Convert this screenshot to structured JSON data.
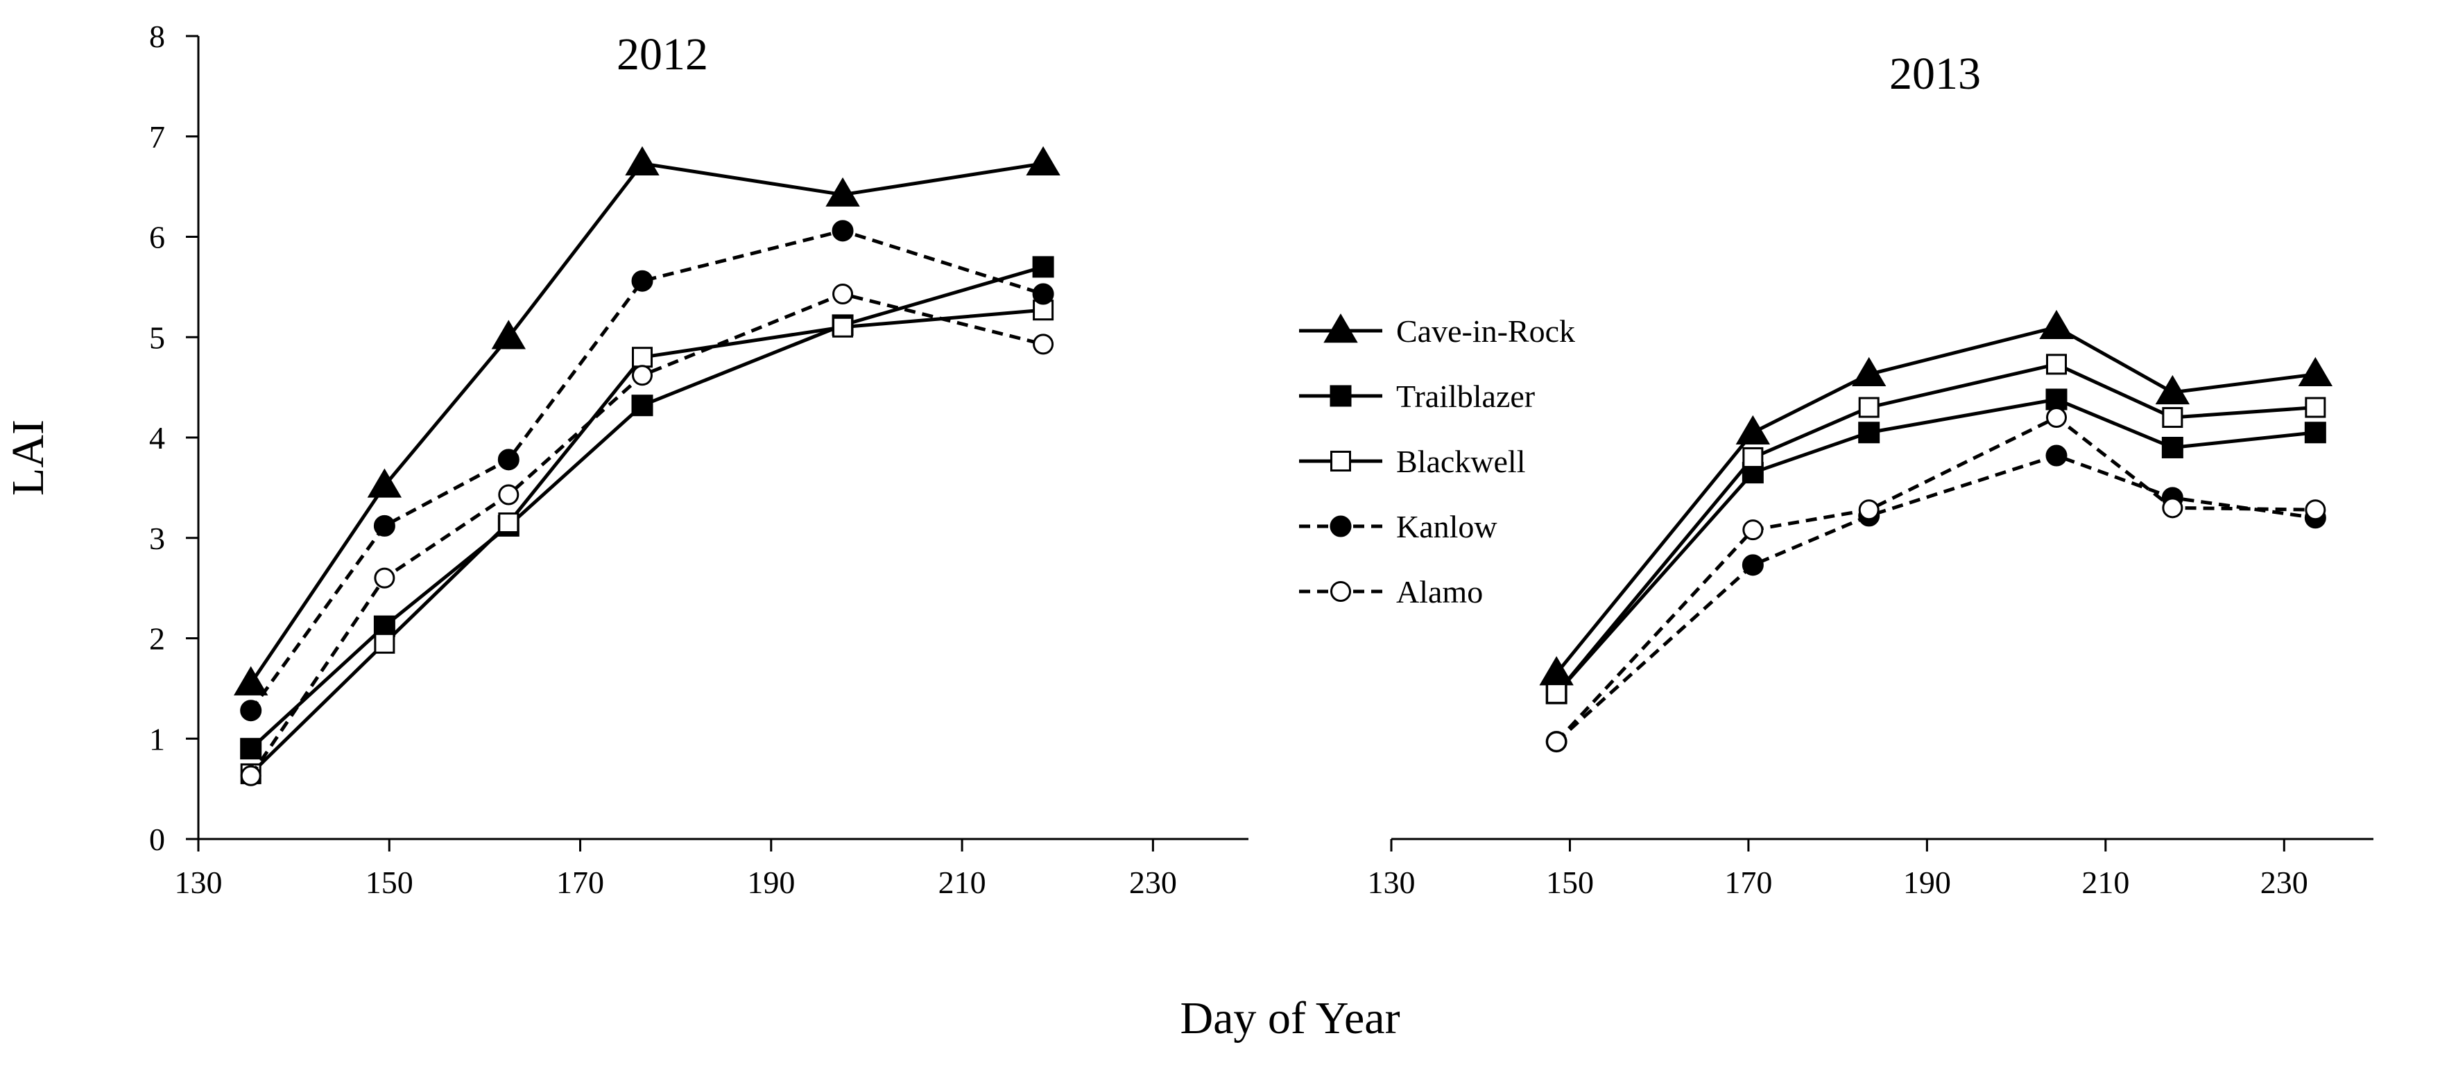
{
  "chart_data": {
    "type": "line",
    "ylabel": "LAI",
    "xlabel": "Day of Year",
    "ylim": [
      0,
      8
    ],
    "yticks": [
      0,
      1,
      2,
      3,
      4,
      5,
      6,
      7,
      8
    ],
    "xlim": [
      130,
      240
    ],
    "xticks": [
      130,
      150,
      170,
      190,
      210,
      230
    ],
    "legend": {
      "position": "center-right",
      "entries": [
        {
          "name": "Cave-in-Rock",
          "marker": "triangle-filled",
          "dash": "solid"
        },
        {
          "name": "Trailblazer",
          "marker": "square-filled",
          "dash": "solid"
        },
        {
          "name": "Blackwell",
          "marker": "square-open",
          "dash": "solid"
        },
        {
          "name": "Kanlow",
          "marker": "circle-filled",
          "dash": "dashed"
        },
        {
          "name": "Alamo",
          "marker": "circle-open",
          "dash": "dashed"
        }
      ]
    },
    "panels": [
      {
        "title": "2012",
        "x": [
          135.5,
          149.5,
          162.5,
          176.5,
          197.5,
          218.5
        ],
        "series": [
          {
            "name": "Cave-in-Rock",
            "values": [
              1.55,
              3.52,
              5.0,
              6.73,
              6.42,
              6.73
            ]
          },
          {
            "name": "Trailblazer",
            "values": [
              0.9,
              2.12,
              3.12,
              4.32,
              5.12,
              5.7
            ]
          },
          {
            "name": "Blackwell",
            "values": [
              0.65,
              1.95,
              3.15,
              4.8,
              5.1,
              5.27
            ]
          },
          {
            "name": "Kanlow",
            "values": [
              1.28,
              3.12,
              3.78,
              5.56,
              6.06,
              5.43
            ]
          },
          {
            "name": "Alamo",
            "values": [
              0.63,
              2.6,
              3.43,
              4.62,
              5.43,
              4.93
            ]
          }
        ]
      },
      {
        "title": "2013",
        "x": [
          148.5,
          170.5,
          183.5,
          204.5,
          217.5,
          233.5
        ],
        "series": [
          {
            "name": "Cave-in-Rock",
            "values": [
              1.65,
              4.05,
              4.63,
              5.1,
              4.45,
              4.63
            ]
          },
          {
            "name": "Trailblazer",
            "values": [
              1.45,
              3.65,
              4.05,
              4.38,
              3.9,
              4.05
            ]
          },
          {
            "name": "Blackwell",
            "values": [
              1.45,
              3.8,
              4.3,
              4.73,
              4.2,
              4.3
            ]
          },
          {
            "name": "Kanlow",
            "values": [
              0.97,
              2.73,
              3.22,
              3.82,
              3.4,
              3.2
            ]
          },
          {
            "name": "Alamo",
            "values": [
              0.97,
              3.08,
              3.28,
              4.2,
              3.3,
              3.28
            ]
          }
        ]
      }
    ]
  }
}
